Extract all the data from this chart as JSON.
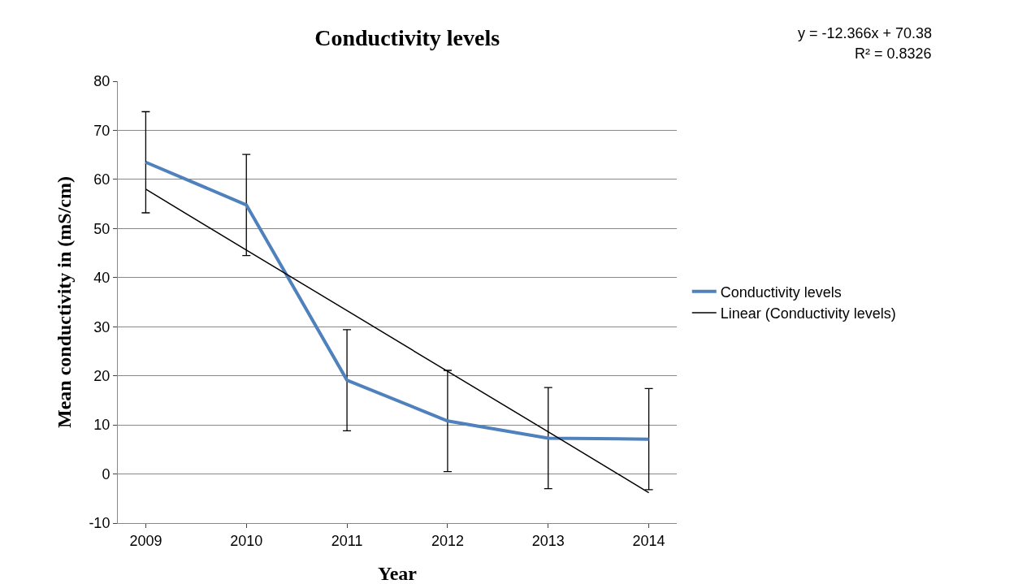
{
  "chart_data": {
    "type": "line",
    "title": "Conductivity levels",
    "xlabel": "Year",
    "ylabel": "Mean conductivity in (mS/cm)",
    "categories": [
      "2009",
      "2010",
      "2011",
      "2012",
      "2013",
      "2014"
    ],
    "series": [
      {
        "name": "Conductivity levels",
        "color": "#4f81bd",
        "values": [
          63.5,
          54.8,
          19.1,
          10.8,
          7.3,
          7.1
        ],
        "errors": [
          10.3,
          10.3,
          10.3,
          10.3,
          10.3,
          10.3
        ]
      },
      {
        "name": "Linear (Conductivity levels)",
        "color": "#000000",
        "type": "line",
        "values": [
          58.0,
          45.6,
          33.3,
          20.9,
          8.6,
          -3.8
        ]
      }
    ],
    "ylim": [
      -10,
      80
    ],
    "yticks": [
      -10,
      0,
      10,
      20,
      30,
      40,
      50,
      60,
      70,
      80
    ],
    "grid": "y",
    "legend": "right",
    "marker": "none",
    "annotations": [
      "y = -12.366x + 70.38",
      "R² = 0.8326"
    ]
  }
}
